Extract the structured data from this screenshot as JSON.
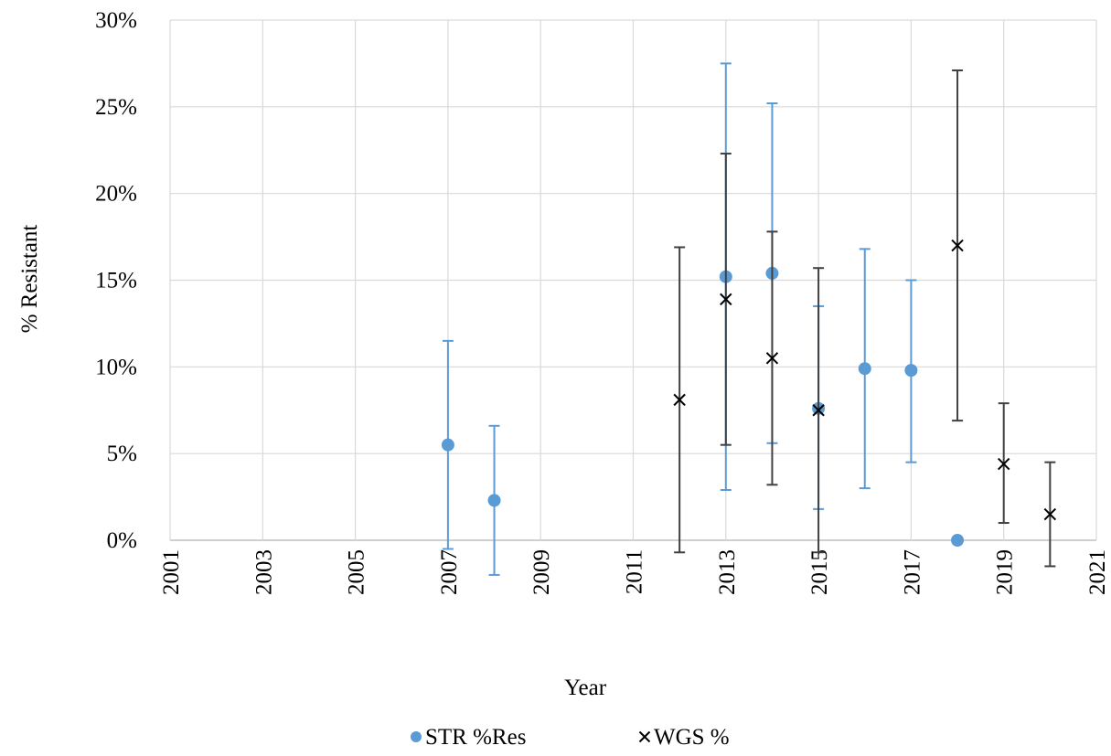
{
  "chart_data": {
    "type": "scatter",
    "xlabel": "Year",
    "ylabel": "% Resistant",
    "xlim": [
      2001,
      2021
    ],
    "ylim": [
      0,
      30
    ],
    "x_ticks": [
      "2001",
      "2003",
      "2005",
      "2007",
      "2009",
      "2011",
      "2013",
      "2015",
      "2017",
      "2019",
      "2021"
    ],
    "y_ticks": [
      "0%",
      "5%",
      "10%",
      "15%",
      "20%",
      "25%",
      "30%"
    ],
    "grid": true,
    "legend_position": "bottom",
    "series": [
      {
        "name": "STR %Res",
        "marker": "circle",
        "color": "#5B9BD5",
        "error_color": "#5B9BD5",
        "points": [
          {
            "x": 2007,
            "y": 5.5,
            "low": -0.5,
            "high": 11.5
          },
          {
            "x": 2008,
            "y": 2.3,
            "low": -2.0,
            "high": 6.6
          },
          {
            "x": 2013,
            "y": 15.2,
            "low": 2.9,
            "high": 27.5
          },
          {
            "x": 2014,
            "y": 15.4,
            "low": 5.6,
            "high": 25.2
          },
          {
            "x": 2015,
            "y": 7.6,
            "low": 1.8,
            "high": 13.5
          },
          {
            "x": 2016,
            "y": 9.9,
            "low": 3.0,
            "high": 16.8
          },
          {
            "x": 2017,
            "y": 9.8,
            "low": 4.5,
            "high": 15.0
          },
          {
            "x": 2018,
            "y": 0.0,
            "low": 0.0,
            "high": 0.0
          }
        ]
      },
      {
        "name": "WGS %",
        "marker": "x",
        "color": "#000000",
        "error_color": "#404040",
        "points": [
          {
            "x": 2012,
            "y": 8.1,
            "low": -0.7,
            "high": 16.9
          },
          {
            "x": 2013,
            "y": 13.9,
            "low": 5.5,
            "high": 22.3
          },
          {
            "x": 2014,
            "y": 10.5,
            "low": 3.2,
            "high": 17.8
          },
          {
            "x": 2015,
            "y": 7.5,
            "low": -0.7,
            "high": 15.7
          },
          {
            "x": 2018,
            "y": 17.0,
            "low": 6.9,
            "high": 27.1
          },
          {
            "x": 2019,
            "y": 4.4,
            "low": 1.0,
            "high": 7.9
          },
          {
            "x": 2020,
            "y": 1.5,
            "low": -1.5,
            "high": 4.5
          }
        ]
      }
    ]
  }
}
